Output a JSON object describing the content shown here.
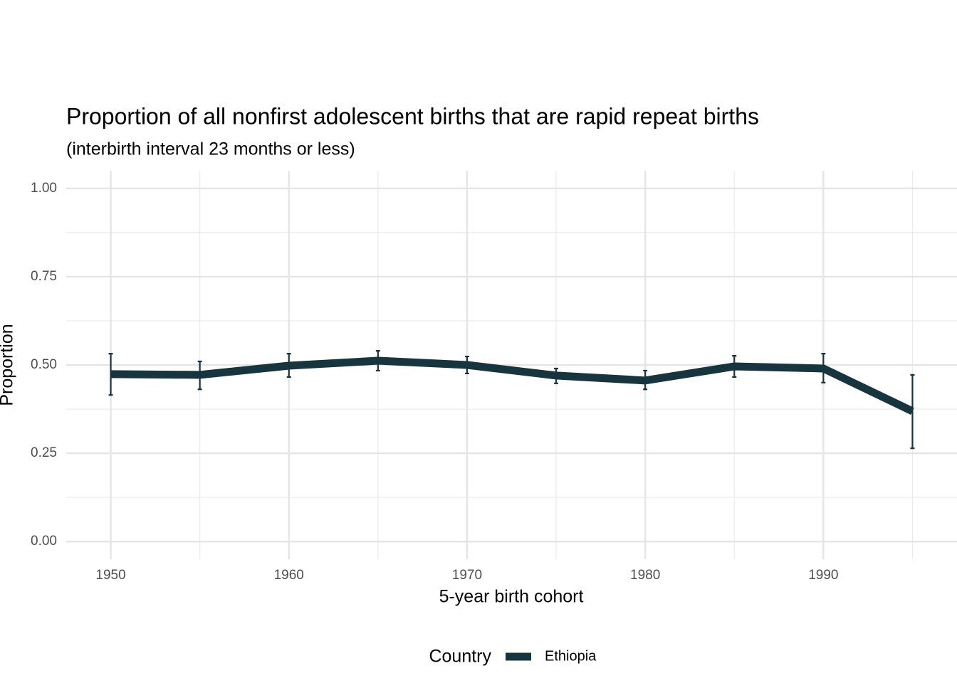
{
  "chart_data": {
    "type": "line",
    "title": "Proportion of all nonfirst adolescent births that are rapid repeat births",
    "subtitle": "(interbirth interval 23 months or less)",
    "x_label": "5-year birth cohort",
    "y_label": "Proportion",
    "x": [
      1950,
      1955,
      1960,
      1965,
      1970,
      1975,
      1980,
      1985,
      1990,
      1995
    ],
    "series": [
      {
        "name": "Ethiopia",
        "color": "#17353f",
        "values": [
          0.474,
          0.472,
          0.498,
          0.512,
          0.5,
          0.47,
          0.456,
          0.496,
          0.49,
          0.369
        ],
        "lower": [
          0.415,
          0.431,
          0.466,
          0.484,
          0.476,
          0.448,
          0.431,
          0.466,
          0.45,
          0.264
        ],
        "upper": [
          0.532,
          0.51,
          0.532,
          0.54,
          0.524,
          0.49,
          0.484,
          0.526,
          0.532,
          0.472
        ]
      }
    ],
    "legend_title": "Country",
    "legend_position": "bottom",
    "xlim": [
      1947.5,
      1997.5
    ],
    "xticks": [
      1950,
      1960,
      1970,
      1980,
      1990
    ],
    "ylim": [
      -0.05,
      1.05
    ],
    "yticks": [
      {
        "value": 0,
        "label": "0.00"
      },
      {
        "value": 0.25,
        "label": "0.25"
      },
      {
        "value": 0.5,
        "label": "0.50"
      },
      {
        "value": 0.75,
        "label": "0.75"
      },
      {
        "value": 1,
        "label": "1.00"
      }
    ],
    "grid": true
  }
}
